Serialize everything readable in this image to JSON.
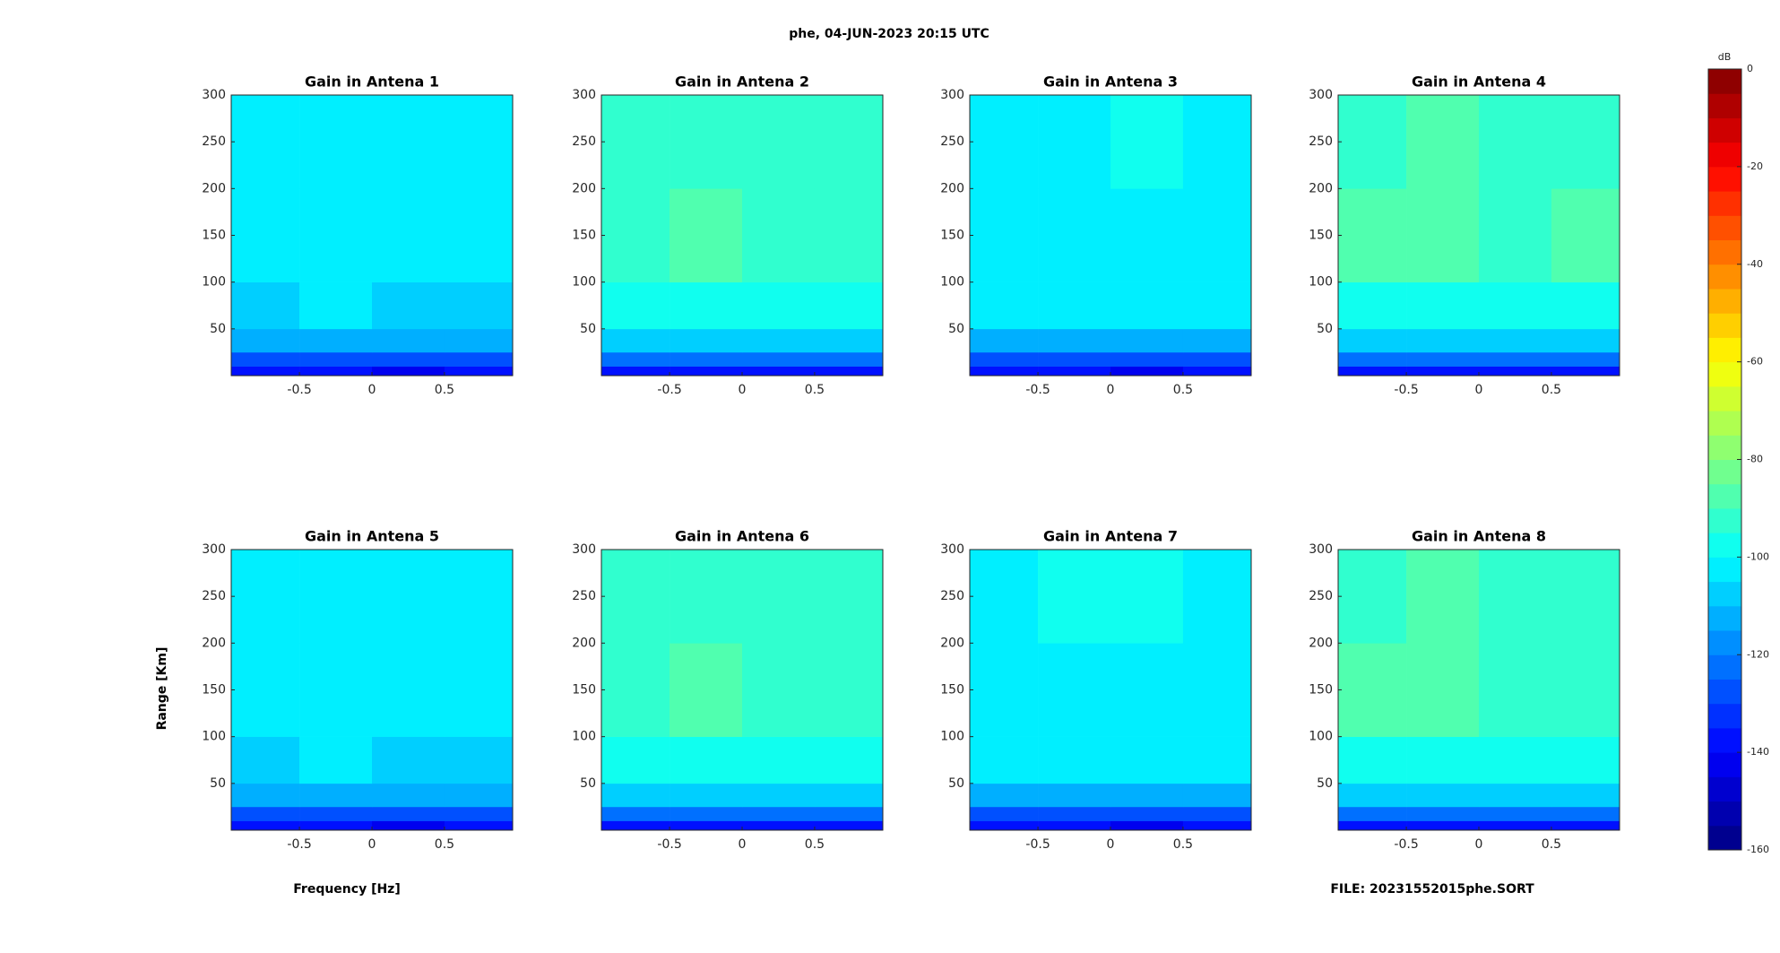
{
  "figure": {
    "title": "phe, 04-JUN-2023 20:15 UTC",
    "xlabel": "Frequency [Hz]",
    "ylabel": "Range [Km]",
    "note": "FILE: 20231552015phe.SORT",
    "colorbar": {
      "label": "dB",
      "lim": [
        -160,
        0
      ],
      "levels": 32,
      "ticks": [
        0,
        -20,
        -40,
        -60,
        -80,
        -100,
        -120,
        -140,
        -160
      ]
    }
  },
  "chart_data": [
    {
      "type": "heatmap",
      "title": "Gain in Antena 1",
      "xbins": [
        -0.97,
        -0.5,
        0,
        0.5,
        0.97
      ],
      "ybins": [
        0,
        10,
        25,
        50,
        100,
        200,
        300
      ],
      "z": [
        [
          -140,
          -139,
          -141,
          -140
        ],
        [
          -127,
          -128,
          -126,
          -127
        ],
        [
          -114,
          -115,
          -113,
          -114
        ],
        [
          -106,
          -105,
          -106,
          -107
        ],
        [
          -104,
          -103,
          -104,
          -104
        ],
        [
          -102,
          -103,
          -102,
          -101
        ]
      ],
      "xlim": [
        -0.97,
        0.97
      ],
      "ylim": [
        0,
        300
      ],
      "xticks": [
        -0.5,
        0,
        0.5
      ],
      "yticks": [
        50,
        100,
        150,
        200,
        250,
        300
      ]
    },
    {
      "type": "heatmap",
      "title": "Gain in Antena 2",
      "xbins": [
        -0.97,
        -0.5,
        0,
        0.5,
        0.97
      ],
      "ybins": [
        0,
        10,
        25,
        50,
        100,
        200,
        300
      ],
      "z": [
        [
          -138,
          -138,
          -139,
          -138
        ],
        [
          -122,
          -123,
          -121,
          -122
        ],
        [
          -108,
          -109,
          -107,
          -108
        ],
        [
          -97,
          -98,
          -96,
          -97
        ],
        [
          -91,
          -90,
          -92,
          -91
        ],
        [
          -92,
          -91,
          -93,
          -92
        ]
      ],
      "xlim": [
        -0.97,
        0.97
      ],
      "ylim": [
        0,
        300
      ],
      "xticks": [
        -0.5,
        0,
        0.5
      ],
      "yticks": [
        50,
        100,
        150,
        200,
        250,
        300
      ]
    },
    {
      "type": "heatmap",
      "title": "Gain in Antena 3",
      "xbins": [
        -0.97,
        -0.5,
        0,
        0.5,
        0.97
      ],
      "ybins": [
        0,
        10,
        25,
        50,
        100,
        200,
        300
      ],
      "z": [
        [
          -140,
          -140,
          -141,
          -140
        ],
        [
          -126,
          -127,
          -126,
          -126
        ],
        [
          -112,
          -113,
          -112,
          -112
        ],
        [
          -104,
          -104,
          -103,
          -104
        ],
        [
          -102,
          -101,
          -102,
          -102
        ],
        [
          -101,
          -101,
          -100,
          -101
        ]
      ],
      "xlim": [
        -0.97,
        0.97
      ],
      "ylim": [
        0,
        300
      ],
      "xticks": [
        -0.5,
        0,
        0.5
      ],
      "yticks": [
        50,
        100,
        150,
        200,
        250,
        300
      ]
    },
    {
      "type": "heatmap",
      "title": "Gain in Antena 4",
      "xbins": [
        -0.97,
        -0.5,
        0,
        0.5,
        0.97
      ],
      "ybins": [
        0,
        10,
        25,
        50,
        100,
        200,
        300
      ],
      "z": [
        [
          -138,
          -137,
          -139,
          -138
        ],
        [
          -121,
          -122,
          -121,
          -121
        ],
        [
          -106,
          -107,
          -106,
          -106
        ],
        [
          -96,
          -97,
          -96,
          -96
        ],
        [
          -90,
          -90,
          -91,
          -90
        ],
        [
          -91,
          -90,
          -91,
          -92
        ]
      ],
      "xlim": [
        -0.97,
        0.97
      ],
      "ylim": [
        0,
        300
      ],
      "xticks": [
        -0.5,
        0,
        0.5
      ],
      "yticks": [
        50,
        100,
        150,
        200,
        250,
        300
      ]
    },
    {
      "type": "heatmap",
      "title": "Gain in Antena 5",
      "xbins": [
        -0.97,
        -0.5,
        0,
        0.5,
        0.97
      ],
      "ybins": [
        0,
        10,
        25,
        50,
        100,
        200,
        300
      ],
      "z": [
        [
          -140,
          -139,
          -141,
          -140
        ],
        [
          -127,
          -128,
          -126,
          -127
        ],
        [
          -114,
          -114,
          -113,
          -114
        ],
        [
          -106,
          -105,
          -106,
          -106
        ],
        [
          -104,
          -104,
          -104,
          -103
        ],
        [
          -102,
          -102,
          -102,
          -101
        ]
      ],
      "xlim": [
        -0.97,
        0.97
      ],
      "ylim": [
        0,
        300
      ],
      "xticks": [
        -0.5,
        0,
        0.5
      ],
      "yticks": [
        50,
        100,
        150,
        200,
        250,
        300
      ]
    },
    {
      "type": "heatmap",
      "title": "Gain in Antena 6",
      "xbins": [
        -0.97,
        -0.5,
        0,
        0.5,
        0.97
      ],
      "ybins": [
        0,
        10,
        25,
        50,
        100,
        200,
        300
      ],
      "z": [
        [
          -138,
          -138,
          -139,
          -138
        ],
        [
          -122,
          -122,
          -121,
          -122
        ],
        [
          -108,
          -108,
          -107,
          -108
        ],
        [
          -97,
          -97,
          -96,
          -97
        ],
        [
          -91,
          -90,
          -91,
          -91
        ],
        [
          -92,
          -91,
          -92,
          -92
        ]
      ],
      "xlim": [
        -0.97,
        0.97
      ],
      "ylim": [
        0,
        300
      ],
      "xticks": [
        -0.5,
        0,
        0.5
      ],
      "yticks": [
        50,
        100,
        150,
        200,
        250,
        300
      ]
    },
    {
      "type": "heatmap",
      "title": "Gain in Antena 7",
      "xbins": [
        -0.97,
        -0.5,
        0,
        0.5,
        0.97
      ],
      "ybins": [
        0,
        10,
        25,
        50,
        100,
        200,
        300
      ],
      "z": [
        [
          -140,
          -140,
          -141,
          -140
        ],
        [
          -126,
          -126,
          -126,
          -127
        ],
        [
          -112,
          -112,
          -112,
          -113
        ],
        [
          -104,
          -104,
          -103,
          -103
        ],
        [
          -102,
          -101,
          -102,
          -101
        ],
        [
          -101,
          -100,
          -100,
          -101
        ]
      ],
      "xlim": [
        -0.97,
        0.97
      ],
      "ylim": [
        0,
        300
      ],
      "xticks": [
        -0.5,
        0,
        0.5
      ],
      "yticks": [
        50,
        100,
        150,
        200,
        250,
        300
      ]
    },
    {
      "type": "heatmap",
      "title": "Gain in Antena 8",
      "xbins": [
        -0.97,
        -0.5,
        0,
        0.5,
        0.97
      ],
      "ybins": [
        0,
        10,
        25,
        50,
        100,
        200,
        300
      ],
      "z": [
        [
          -138,
          -137,
          -138,
          -138
        ],
        [
          -121,
          -121,
          -121,
          -122
        ],
        [
          -106,
          -106,
          -106,
          -107
        ],
        [
          -96,
          -96,
          -96,
          -97
        ],
        [
          -90,
          -90,
          -91,
          -91
        ],
        [
          -91,
          -90,
          -91,
          -91
        ]
      ],
      "xlim": [
        -0.97,
        0.97
      ],
      "ylim": [
        0,
        300
      ],
      "xticks": [
        -0.5,
        0,
        0.5
      ],
      "yticks": [
        50,
        100,
        150,
        200,
        250,
        300
      ]
    }
  ]
}
